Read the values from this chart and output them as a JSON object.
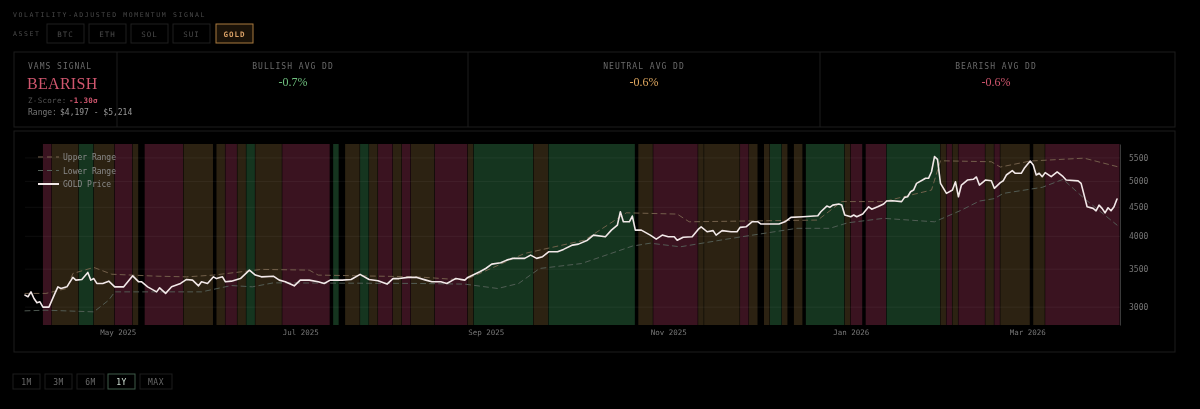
{
  "chart_data": {
    "type": "line",
    "title": "VOLATILITY-ADJUSTED MOMENTUM SIGNAL",
    "annotations": [
      "ASSET",
      "BTC",
      "ETH",
      "SOL",
      "SUI",
      "GOLD",
      "VAMS SIGNAL",
      "BEARISH",
      "Z-Score:",
      "-1.30σ",
      "Range:",
      "$4,197 - $5,214",
      "BULLISH AVG DD",
      "-0.7%",
      "NEUTRAL AVG DD",
      "-0.6%",
      "BEARISH AVG DD",
      "-0.6%",
      "1M",
      "3M",
      "6M",
      "1Y",
      "MAX"
    ],
    "xlim": [
      "2025-03-31",
      "2026-04-01"
    ],
    "xticks": [
      {
        "value": "2025-05-01",
        "label": "May 2025"
      },
      {
        "value": "2025-07-01",
        "label": "Jul 2025"
      },
      {
        "value": "2025-09-01",
        "label": "Sep 2025"
      },
      {
        "value": "2025-11-01",
        "label": "Nov 2025"
      },
      {
        "value": "2026-01-01",
        "label": "Jan 2026"
      },
      {
        "value": "2026-03-01",
        "label": "Mar 2026"
      }
    ],
    "ylim": [
      2790,
      5820
    ],
    "yticks": [
      3000,
      3500,
      4000,
      4500,
      5000,
      5500
    ],
    "log": true,
    "grid": "y",
    "legend": "top left",
    "series": [
      {
        "name": "Upper Range",
        "color": "#7a6650",
        "line_style": "dashed",
        "x": [
          "2025-03-31",
          "2025-04-07",
          "2025-04-14",
          "2025-04-16",
          "2025-04-23",
          "2025-04-29",
          "2025-05-14",
          "2025-05-24",
          "2025-06-02",
          "2025-06-18",
          "2025-07-04",
          "2025-07-07",
          "2025-08-09",
          "2025-08-25",
          "2025-09-14",
          "2025-10-04",
          "2025-10-18",
          "2025-11-04",
          "2025-11-08",
          "2025-12-21",
          "2025-12-29",
          "2026-01-12",
          "2026-01-28",
          "2026-01-31",
          "2026-02-17",
          "2026-02-20",
          "2026-03-02",
          "2026-03-20",
          "2026-03-31"
        ],
        "values": [
          3172,
          3172,
          3236,
          3440,
          3525,
          3429,
          3402,
          3393,
          3417,
          3497,
          3487,
          3417,
          3393,
          3348,
          3731,
          3938,
          4401,
          4378,
          4243,
          4273,
          4606,
          4606,
          4827,
          5437,
          5415,
          5300,
          5431,
          5495,
          5310
        ]
      },
      {
        "name": "Lower Range",
        "color": "#56625a",
        "line_style": "dashed",
        "x": [
          "2025-03-31",
          "2025-04-07",
          "2025-04-23",
          "2025-04-28",
          "2025-04-30",
          "2025-05-29",
          "2025-06-08",
          "2025-06-15",
          "2025-06-22",
          "2025-08-09",
          "2025-08-25",
          "2025-09-05",
          "2025-09-12",
          "2025-09-19",
          "2025-10-03",
          "2025-10-20",
          "2025-10-26",
          "2025-11-05",
          "2025-11-22",
          "2025-12-14",
          "2025-12-25",
          "2025-12-31",
          "2026-01-12",
          "2026-01-29",
          "2026-02-07",
          "2026-02-13",
          "2026-02-18",
          "2026-02-21",
          "2026-03-06",
          "2026-03-13",
          "2026-03-20",
          "2026-03-31"
        ],
        "values": [
          2955,
          2963,
          2943,
          3087,
          3192,
          3192,
          3275,
          3258,
          3311,
          3303,
          3294,
          3236,
          3303,
          3510,
          3581,
          3844,
          3890,
          3833,
          3966,
          4132,
          4132,
          4226,
          4303,
          4243,
          4449,
          4616,
          4662,
          4762,
          4881,
          5042,
          4667,
          4187
        ]
      },
      {
        "name": "GOLD Price",
        "color": "#f2e8e8",
        "line_style": "solid",
        "x": [
          "2025-03-31",
          "2025-04-01",
          "2025-04-02",
          "2025-04-03",
          "2025-04-04",
          "2025-04-05",
          "2025-04-06",
          "2025-04-08",
          "2025-04-10",
          "2025-04-11",
          "2025-04-12",
          "2025-04-14",
          "2025-04-16",
          "2025-04-17",
          "2025-04-19",
          "2025-04-21",
          "2025-04-22",
          "2025-04-23",
          "2025-04-24",
          "2025-04-26",
          "2025-04-28",
          "2025-04-30",
          "2025-05-03",
          "2025-05-06",
          "2025-05-08",
          "2025-05-09",
          "2025-05-11",
          "2025-05-14",
          "2025-05-15",
          "2025-05-17",
          "2025-05-19",
          "2025-05-22",
          "2025-05-24",
          "2025-05-26",
          "2025-05-28",
          "2025-05-29",
          "2025-05-31",
          "2025-06-02",
          "2025-06-03",
          "2025-06-05",
          "2025-06-06",
          "2025-06-08",
          "2025-06-11",
          "2025-06-14",
          "2025-06-16",
          "2025-06-18",
          "2025-06-22",
          "2025-06-24",
          "2025-06-26",
          "2025-06-29",
          "2025-07-01",
          "2025-07-04",
          "2025-07-07",
          "2025-07-09",
          "2025-07-11",
          "2025-07-15",
          "2025-07-18",
          "2025-07-21",
          "2025-07-24",
          "2025-07-27",
          "2025-07-30",
          "2025-08-01",
          "2025-08-03",
          "2025-08-06",
          "2025-08-09",
          "2025-08-12",
          "2025-08-14",
          "2025-08-17",
          "2025-08-19",
          "2025-08-21",
          "2025-08-22",
          "2025-08-25",
          "2025-08-26",
          "2025-08-30",
          "2025-09-01",
          "2025-09-03",
          "2025-09-06",
          "2025-09-08",
          "2025-09-10",
          "2025-09-14",
          "2025-09-16",
          "2025-09-18",
          "2025-09-20",
          "2025-09-22",
          "2025-09-25",
          "2025-09-27",
          "2025-09-30",
          "2025-10-02",
          "2025-10-05",
          "2025-10-07",
          "2025-10-11",
          "2025-10-13",
          "2025-10-15",
          "2025-10-16",
          "2025-10-17",
          "2025-10-19",
          "2025-10-20",
          "2025-10-21",
          "2025-10-23",
          "2025-10-26",
          "2025-10-28",
          "2025-10-30",
          "2025-11-01",
          "2025-11-03",
          "2025-11-04",
          "2025-11-06",
          "2025-11-09",
          "2025-11-11",
          "2025-11-12",
          "2025-11-14",
          "2025-11-16",
          "2025-11-17",
          "2025-11-19",
          "2025-11-22",
          "2025-11-24",
          "2025-11-25",
          "2025-11-27",
          "2025-11-29",
          "2025-12-01",
          "2025-12-02",
          "2025-12-08",
          "2025-12-10",
          "2025-12-12",
          "2025-12-16",
          "2025-12-21",
          "2025-12-22",
          "2025-12-24",
          "2025-12-25",
          "2025-12-26",
          "2025-12-28",
          "2025-12-29",
          "2025-12-30",
          "2026-01-01",
          "2026-01-02",
          "2026-01-03",
          "2026-01-05",
          "2026-01-07",
          "2026-01-08",
          "2026-01-10",
          "2026-01-12",
          "2026-01-13",
          "2026-01-15",
          "2026-01-18",
          "2026-01-19",
          "2026-01-20",
          "2026-01-21",
          "2026-01-22",
          "2026-01-23",
          "2026-01-25",
          "2026-01-26",
          "2026-01-27",
          "2026-01-28",
          "2026-01-29",
          "2026-01-30",
          "2026-01-31",
          "2026-02-02",
          "2026-02-04",
          "2026-02-05",
          "2026-02-06",
          "2026-02-07",
          "2026-02-09",
          "2026-02-11",
          "2026-02-12",
          "2026-02-13",
          "2026-02-15",
          "2026-02-17",
          "2026-02-18",
          "2026-02-20",
          "2026-02-21",
          "2026-02-22",
          "2026-02-24",
          "2026-02-25",
          "2026-02-27",
          "2026-02-28",
          "2026-03-02",
          "2026-03-03",
          "2026-03-04",
          "2026-03-05",
          "2026-03-06",
          "2026-03-07",
          "2026-03-09",
          "2026-03-11",
          "2026-03-13",
          "2026-03-14",
          "2026-03-18",
          "2026-03-19",
          "2026-03-21",
          "2026-03-23",
          "2026-03-24",
          "2026-03-25",
          "2026-03-26",
          "2026-03-27",
          "2026-03-28",
          "2026-03-29",
          "2026-03-30",
          "2026-03-31"
        ],
        "values": [
          3150,
          3129,
          3192,
          3107,
          3053,
          3065,
          3000,
          3000,
          3172,
          3258,
          3236,
          3258,
          3385,
          3348,
          3357,
          3454,
          3348,
          3369,
          3303,
          3303,
          3334,
          3258,
          3258,
          3407,
          3325,
          3325,
          3258,
          3192,
          3245,
          3172,
          3258,
          3303,
          3357,
          3348,
          3271,
          3325,
          3303,
          3393,
          3369,
          3393,
          3325,
          3334,
          3369,
          3487,
          3417,
          3393,
          3402,
          3348,
          3325,
          3271,
          3348,
          3348,
          3325,
          3303,
          3348,
          3348,
          3357,
          3427,
          3357,
          3339,
          3294,
          3369,
          3369,
          3385,
          3385,
          3348,
          3325,
          3325,
          3303,
          3348,
          3369,
          3348,
          3385,
          3463,
          3510,
          3573,
          3592,
          3631,
          3657,
          3657,
          3706,
          3657,
          3682,
          3756,
          3756,
          3793,
          3860,
          3875,
          3938,
          4020,
          3992,
          4102,
          4187,
          4420,
          4243,
          4243,
          4343,
          4102,
          4102,
          4020,
          3955,
          4020,
          3992,
          3992,
          3938,
          3985,
          3992,
          4114,
          4158,
          4075,
          4094,
          4020,
          4094,
          4075,
          4075,
          4148,
          4158,
          4243,
          4243,
          4204,
          4204,
          4243,
          4320,
          4330,
          4348,
          4420,
          4523,
          4500,
          4541,
          4560,
          4541,
          4361,
          4330,
          4361,
          4330,
          4378,
          4510,
          4467,
          4510,
          4560,
          4616,
          4622,
          4606,
          4686,
          4697,
          4794,
          4827,
          4960,
          5027,
          5063,
          5063,
          5200,
          5530,
          5466,
          4960,
          4762,
          4827,
          4992,
          4697,
          4926,
          5027,
          5042,
          5090,
          4926,
          5027,
          5013,
          4861,
          4974,
          5013,
          5131,
          5222,
          5167,
          5167,
          5273,
          5431,
          5343,
          5131,
          5167,
          5096,
          5181,
          5096,
          5195,
          5096,
          5027,
          5010,
          4960,
          4510,
          4481,
          4437,
          4541,
          4481,
          4401,
          4492,
          4437,
          4510,
          4654
        ]
      }
    ],
    "bands": [
      {
        "axis": "x",
        "from": "2025-04-06",
        "to": "2025-04-08",
        "color": "#3a1320"
      },
      {
        "axis": "x",
        "from": "2025-04-09",
        "to": "2025-04-17",
        "color": "#2c2212"
      },
      {
        "axis": "x",
        "from": "2025-04-18",
        "to": "2025-04-22",
        "color": "#15351f"
      },
      {
        "axis": "x",
        "from": "2025-04-23",
        "to": "2025-04-29",
        "color": "#2c2212"
      },
      {
        "axis": "x",
        "from": "2025-04-30",
        "to": "2025-05-05",
        "color": "#3a1320"
      },
      {
        "axis": "x",
        "from": "2025-05-06",
        "to": "2025-05-07",
        "color": "#2c2212"
      },
      {
        "axis": "x",
        "from": "2025-05-10",
        "to": "2025-05-22",
        "color": "#3a1320"
      },
      {
        "axis": "x",
        "from": "2025-05-23",
        "to": "2025-06-01",
        "color": "#2c2212"
      },
      {
        "axis": "x",
        "from": "2025-06-03",
        "to": "2025-06-05",
        "color": "#2c2212"
      },
      {
        "axis": "x",
        "from": "2025-06-06",
        "to": "2025-06-09",
        "color": "#3a1320"
      },
      {
        "axis": "x",
        "from": "2025-06-10",
        "to": "2025-06-12",
        "color": "#2c2212"
      },
      {
        "axis": "x",
        "from": "2025-06-13",
        "to": "2025-06-15",
        "color": "#15351f"
      },
      {
        "axis": "x",
        "from": "2025-06-16",
        "to": "2025-06-24",
        "color": "#2c2212"
      },
      {
        "axis": "x",
        "from": "2025-06-25",
        "to": "2025-07-10",
        "color": "#3a1320"
      },
      {
        "axis": "x",
        "from": "2025-07-12",
        "to": "2025-07-13",
        "color": "#15351f"
      },
      {
        "axis": "x",
        "from": "2025-07-16",
        "to": "2025-07-20",
        "color": "#2c2212"
      },
      {
        "axis": "x",
        "from": "2025-07-21",
        "to": "2025-07-23",
        "color": "#15351f"
      },
      {
        "axis": "x",
        "from": "2025-07-24",
        "to": "2025-07-26",
        "color": "#2c2212"
      },
      {
        "axis": "x",
        "from": "2025-07-27",
        "to": "2025-07-31",
        "color": "#3a1320"
      },
      {
        "axis": "x",
        "from": "2025-08-01",
        "to": "2025-08-03",
        "color": "#2c2212"
      },
      {
        "axis": "x",
        "from": "2025-08-04",
        "to": "2025-08-06",
        "color": "#3a1320"
      },
      {
        "axis": "x",
        "from": "2025-08-07",
        "to": "2025-08-14",
        "color": "#2c2212"
      },
      {
        "axis": "x",
        "from": "2025-08-15",
        "to": "2025-08-25",
        "color": "#3a1320"
      },
      {
        "axis": "x",
        "from": "2025-08-26",
        "to": "2025-08-27",
        "color": "#2c2212"
      },
      {
        "axis": "x",
        "from": "2025-08-28",
        "to": "2025-09-16",
        "color": "#15351f"
      },
      {
        "axis": "x",
        "from": "2025-09-17",
        "to": "2025-09-21",
        "color": "#2c2212"
      },
      {
        "axis": "x",
        "from": "2025-09-22",
        "to": "2025-10-20",
        "color": "#15351f"
      },
      {
        "axis": "x",
        "from": "2025-10-22",
        "to": "2025-10-26",
        "color": "#2c2212"
      },
      {
        "axis": "x",
        "from": "2025-10-27",
        "to": "2025-11-10",
        "color": "#3a1320"
      },
      {
        "axis": "x",
        "from": "2025-11-11",
        "to": "2025-11-12",
        "color": "#2c2212"
      },
      {
        "axis": "x",
        "from": "2025-11-13",
        "to": "2025-11-24",
        "color": "#2c2212"
      },
      {
        "axis": "x",
        "from": "2025-11-25",
        "to": "2025-11-27",
        "color": "#3a1320"
      },
      {
        "axis": "x",
        "from": "2025-11-28",
        "to": "2025-11-30",
        "color": "#2c2212"
      },
      {
        "axis": "x",
        "from": "2025-12-03",
        "to": "2025-12-04",
        "color": "#2c2212"
      },
      {
        "axis": "x",
        "from": "2025-12-05",
        "to": "2025-12-08",
        "color": "#15351f"
      },
      {
        "axis": "x",
        "from": "2025-12-09",
        "to": "2025-12-10",
        "color": "#2c2212"
      },
      {
        "axis": "x",
        "from": "2025-12-13",
        "to": "2025-12-15",
        "color": "#2c2212"
      },
      {
        "axis": "x",
        "from": "2025-12-17",
        "to": "2025-12-29",
        "color": "#15351f"
      },
      {
        "axis": "x",
        "from": "2025-12-30",
        "to": "2025-12-31",
        "color": "#2c2212"
      },
      {
        "axis": "x",
        "from": "2026-01-01",
        "to": "2026-01-04",
        "color": "#3a1320"
      },
      {
        "axis": "x",
        "from": "2026-01-06",
        "to": "2026-01-12",
        "color": "#3a1320"
      },
      {
        "axis": "x",
        "from": "2026-01-13",
        "to": "2026-01-30",
        "color": "#15351f"
      },
      {
        "axis": "x",
        "from": "2026-01-31",
        "to": "2026-02-01",
        "color": "#2c2212"
      },
      {
        "axis": "x",
        "from": "2026-02-02",
        "to": "2026-02-03",
        "color": "#3a1320"
      },
      {
        "axis": "x",
        "from": "2026-02-04",
        "to": "2026-02-05",
        "color": "#2c2212"
      },
      {
        "axis": "x",
        "from": "2026-02-06",
        "to": "2026-02-14",
        "color": "#3a1320"
      },
      {
        "axis": "x",
        "from": "2026-02-15",
        "to": "2026-02-17",
        "color": "#2c2212"
      },
      {
        "axis": "x",
        "from": "2026-02-18",
        "to": "2026-02-19",
        "color": "#3a1320"
      },
      {
        "axis": "x",
        "from": "2026-02-20",
        "to": "2026-03-01",
        "color": "#2c2212"
      },
      {
        "axis": "x",
        "from": "2026-03-03",
        "to": "2026-03-06",
        "color": "#2c2212"
      },
      {
        "axis": "x",
        "from": "2026-03-07",
        "to": "2026-03-31",
        "color": "#3a1320"
      }
    ]
  }
}
